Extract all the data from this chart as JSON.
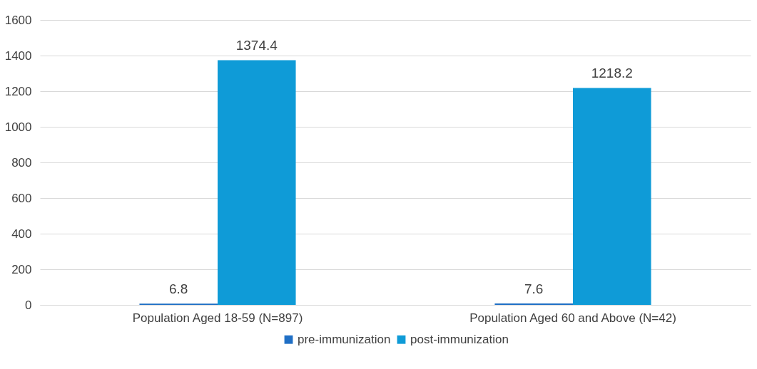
{
  "chart_data": {
    "type": "bar",
    "categories": [
      "Population Aged 18-59 (N=897)",
      "Population Aged 60 and Above (N=42)"
    ],
    "series": [
      {
        "name": "pre-immunization",
        "color": "#1f6fc5",
        "values": [
          6.8,
          7.6
        ]
      },
      {
        "name": "post-immunization",
        "color": "#0f9bd7",
        "values": [
          1374.4,
          1218.2
        ]
      }
    ],
    "ylim": [
      0,
      1600
    ],
    "yticks": [
      0,
      200,
      400,
      600,
      800,
      1000,
      1200,
      1400,
      1600
    ],
    "grid": "y",
    "legend": "bottom",
    "data_labels": true
  }
}
